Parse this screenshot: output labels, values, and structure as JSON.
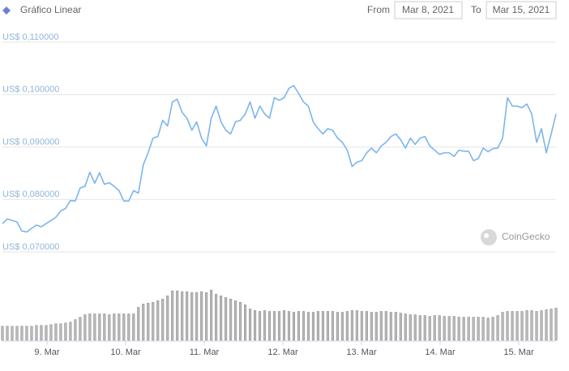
{
  "chart_data": {
    "type": "line",
    "title": "Gráfico Linear",
    "from_label": "From",
    "from_date": "Mar 8, 2021",
    "to_label": "To",
    "to_date": "Mar 15, 2021",
    "watermark": "CoinGecko",
    "color": "#7cb5ec",
    "volume_color": "#b8b8b8",
    "grid": true,
    "ylim": [
      0.07,
      0.11
    ],
    "yticks": [
      {
        "value": 0.07,
        "label": "US$ 0,070000"
      },
      {
        "value": 0.08,
        "label": "US$ 0,080000"
      },
      {
        "value": 0.09,
        "label": "US$ 0,090000"
      },
      {
        "value": 0.1,
        "label": "US$ 0,100000"
      },
      {
        "value": 0.11,
        "label": "US$ 0,110000"
      }
    ],
    "xlim": [
      0,
      114
    ],
    "xticks": [
      {
        "value": 9.18,
        "label": "9. Mar"
      },
      {
        "value": 25.37,
        "label": "10. Mar"
      },
      {
        "value": 41.56,
        "label": "11. Mar"
      },
      {
        "value": 57.75,
        "label": "12. Mar"
      },
      {
        "value": 73.94,
        "label": "13. Mar"
      },
      {
        "value": 90.13,
        "label": "14. Mar"
      },
      {
        "value": 106.32,
        "label": "15. Mar"
      }
    ],
    "values": [
      0.0754,
      0.0763,
      0.076,
      0.0757,
      0.074,
      0.0738,
      0.0745,
      0.0751,
      0.0748,
      0.0754,
      0.076,
      0.0766,
      0.0778,
      0.0783,
      0.0798,
      0.0797,
      0.0822,
      0.0825,
      0.0852,
      0.0831,
      0.0851,
      0.0829,
      0.0832,
      0.0825,
      0.0817,
      0.0797,
      0.0797,
      0.0817,
      0.0812,
      0.0866,
      0.0889,
      0.0917,
      0.092,
      0.0951,
      0.094,
      0.0986,
      0.0991,
      0.0966,
      0.0955,
      0.0932,
      0.0948,
      0.0917,
      0.0902,
      0.0955,
      0.0978,
      0.0948,
      0.0932,
      0.0925,
      0.0948,
      0.0951,
      0.0963,
      0.0986,
      0.0955,
      0.0978,
      0.0963,
      0.0955,
      0.0994,
      0.0989,
      0.0994,
      0.1012,
      0.1017,
      0.1002,
      0.0986,
      0.0978,
      0.0948,
      0.0935,
      0.0925,
      0.0935,
      0.0932,
      0.0917,
      0.0909,
      0.0894,
      0.0863,
      0.0871,
      0.0874,
      0.0889,
      0.0898,
      0.0889,
      0.0902,
      0.0909,
      0.092,
      0.0925,
      0.0914,
      0.0898,
      0.0917,
      0.0905,
      0.0917,
      0.092,
      0.0902,
      0.0894,
      0.0886,
      0.0889,
      0.0889,
      0.0882,
      0.0894,
      0.0892,
      0.0892,
      0.0874,
      0.0878,
      0.0898,
      0.0891,
      0.0897,
      0.0898,
      0.0917,
      0.0994,
      0.0978,
      0.0978,
      0.0975,
      0.0982,
      0.0963,
      0.0909,
      0.0935,
      0.0889,
      0.0925,
      0.0963
    ],
    "volumes": [
      17,
      17,
      17,
      17,
      17,
      17,
      17,
      18,
      18,
      18,
      19,
      20,
      20,
      21,
      22,
      25,
      28,
      31,
      32,
      32,
      32,
      32,
      31,
      32,
      32,
      32,
      32,
      32,
      40,
      44,
      45,
      46,
      48,
      50,
      54,
      60,
      60,
      59,
      59,
      58,
      58,
      59,
      58,
      61,
      56,
      54,
      52,
      50,
      48,
      46,
      43,
      38,
      36,
      35,
      36,
      35,
      35,
      35,
      36,
      35,
      34,
      35,
      35,
      34,
      34,
      35,
      35,
      35,
      35,
      34,
      34,
      35,
      36,
      36,
      35,
      35,
      34,
      34,
      35,
      35,
      34,
      34,
      33,
      32,
      31,
      31,
      30,
      30,
      29,
      30,
      30,
      29,
      29,
      29,
      28,
      28,
      28,
      28,
      28,
      28,
      27,
      28,
      30,
      34,
      35,
      35,
      35,
      35,
      36,
      36,
      35,
      36,
      37,
      38,
      39
    ]
  }
}
